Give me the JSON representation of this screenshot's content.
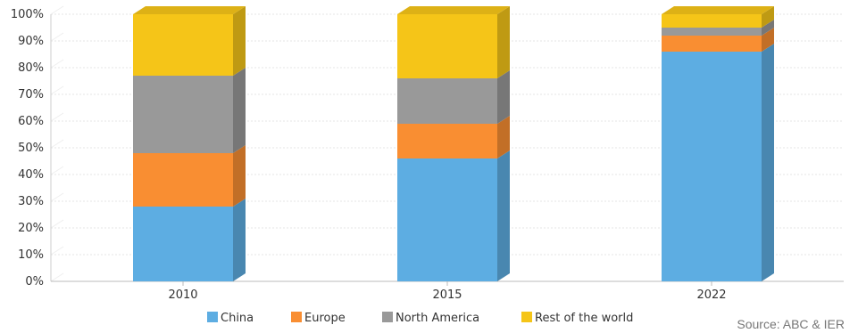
{
  "chart_data": {
    "type": "bar",
    "stacked": true,
    "style": "3d",
    "categories": [
      "2010",
      "2015",
      "2022"
    ],
    "series": [
      {
        "name": "China",
        "color": "#5DADE2",
        "values": [
          28,
          46,
          86
        ]
      },
      {
        "name": "Europe",
        "color": "#F98E32",
        "values": [
          20,
          13,
          6
        ]
      },
      {
        "name": "North America",
        "color": "#999999",
        "values": [
          29,
          17,
          3
        ]
      },
      {
        "name": "Rest of the world",
        "color": "#F5C518",
        "values": [
          23,
          24,
          5
        ]
      }
    ],
    "y_ticks": [
      "0%",
      "10%",
      "20%",
      "30%",
      "40%",
      "50%",
      "60%",
      "70%",
      "80%",
      "90%",
      "100%"
    ],
    "ylim": [
      0,
      100
    ],
    "grid": true,
    "legend_position": "bottom"
  },
  "source_text": "Source: ABC & IER"
}
